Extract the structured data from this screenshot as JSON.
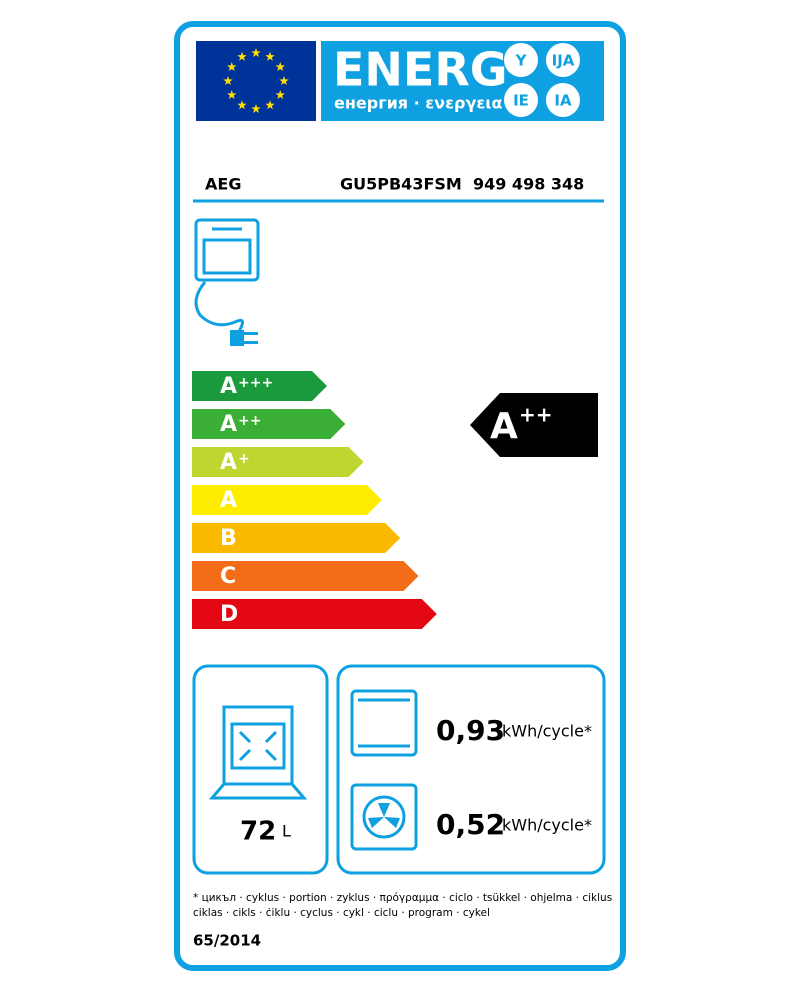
{
  "header": {
    "title": "ENERG",
    "subtitle": "енергия · ενεργεια",
    "badges": [
      "Y",
      "IJA",
      "IE",
      "IA"
    ]
  },
  "supplier": "AEG",
  "model": "GU5PB43FSM  949 498 348",
  "classes": [
    {
      "letter": "A",
      "plus": "+++",
      "color": "#1a9a3c"
    },
    {
      "letter": "A",
      "plus": "++",
      "color": "#3aae35"
    },
    {
      "letter": "A",
      "plus": "+",
      "color": "#bed62f"
    },
    {
      "letter": "A",
      "plus": "",
      "color": "#ffed00"
    },
    {
      "letter": "B",
      "plus": "",
      "color": "#fbb900"
    },
    {
      "letter": "C",
      "plus": "",
      "color": "#f26c19"
    },
    {
      "letter": "D",
      "plus": "",
      "color": "#e30613"
    }
  ],
  "rating": {
    "letter": "A",
    "plus": "++"
  },
  "volume": {
    "value": "72",
    "unit": "L"
  },
  "consumption": [
    {
      "value": "0,93",
      "unit": "kWh/cycle*"
    },
    {
      "value": "0,52",
      "unit": "kWh/cycle*"
    }
  ],
  "footnote": [
    "* цикъл · cyklus · portion · zyklus · πρόγραμμα · ciclo · tsükkel · ohjelma · ciklus",
    "ciklas · cikls · ċiklu · cyclus · cykl · ciclu · program · cykel"
  ],
  "regulation": "65/2014"
}
